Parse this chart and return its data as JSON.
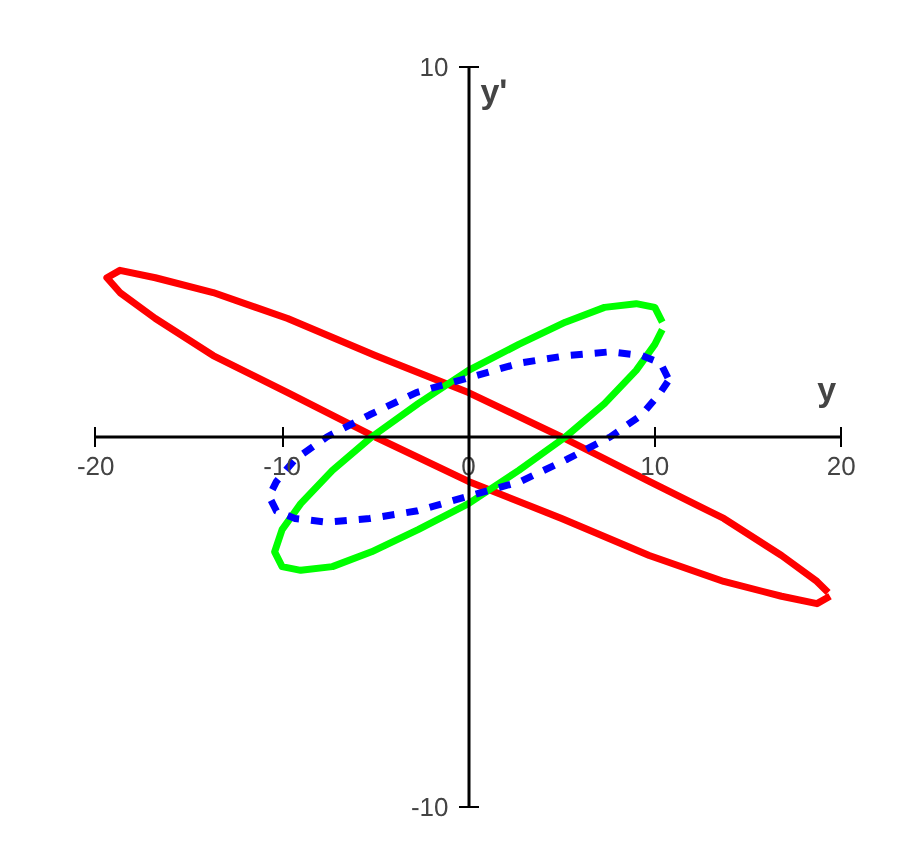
{
  "chart_data": {
    "type": "line",
    "xlabel": "y",
    "ylabel": "y'",
    "xlim": [
      -20,
      20
    ],
    "ylim": [
      -10,
      10
    ],
    "xticks": [
      -20,
      -10,
      0,
      10,
      20
    ],
    "yticks": [
      -10,
      10
    ],
    "grid": false,
    "marker": "none",
    "series": [
      {
        "color": "#ff0000",
        "line_style": "solid",
        "x": [
          19.4,
          18.7,
          16.8,
          13.7,
          9.7,
          5.0,
          0,
          -5.0,
          -9.7,
          -13.7,
          -16.8,
          -18.7,
          -19.4,
          -18.7,
          -16.8,
          -13.7,
          -9.7,
          -5.0,
          0,
          5.0,
          9.7,
          13.7,
          16.8,
          18.7,
          19.3
        ],
        "values": [
          -4.3,
          -4.5,
          -4.3,
          -3.9,
          -3.2,
          -2.2,
          -1.2,
          0,
          1.2,
          2.2,
          3.2,
          3.9,
          4.3,
          4.5,
          4.3,
          3.9,
          3.2,
          2.2,
          1.2,
          0,
          -1.2,
          -2.2,
          -3.2,
          -3.9,
          -4.2
        ]
      },
      {
        "color": "#00ff00",
        "line_style": "solid",
        "x": [
          10.4,
          10.0,
          9.0,
          7.3,
          5.2,
          2.7,
          0,
          -2.7,
          -5.2,
          -7.3,
          -9.0,
          -10.0,
          -10.4,
          -10.0,
          -9.0,
          -7.3,
          -5.2,
          -2.7,
          0,
          2.7,
          5.2,
          7.3,
          9.0,
          10.0,
          10.4
        ],
        "values": [
          3.1,
          3.5,
          3.6,
          3.5,
          3.1,
          2.5,
          1.8,
          0.9,
          0,
          -0.9,
          -1.8,
          -2.5,
          -3.1,
          -3.5,
          -3.6,
          -3.5,
          -3.1,
          -2.5,
          -1.8,
          -0.9,
          0,
          0.9,
          1.8,
          2.5,
          2.9
        ]
      },
      {
        "color": "#0000ff",
        "line_style": "dashed",
        "x": [
          10.7,
          10.3,
          9.3,
          7.6,
          5.3,
          2.8,
          0,
          -2.8,
          -5.3,
          -7.6,
          -9.3,
          -10.3,
          -10.7,
          -10.3,
          -9.3,
          -7.6,
          -5.3,
          -2.8,
          0,
          2.8,
          5.3,
          7.6,
          9.3,
          10.3,
          10.7
        ],
        "values": [
          1.6,
          2.0,
          2.2,
          2.3,
          2.2,
          2.0,
          1.6,
          1.2,
          0.6,
          0,
          -0.6,
          -1.2,
          -1.6,
          -2.0,
          -2.2,
          -2.3,
          -2.2,
          -2.0,
          -1.6,
          -1.2,
          -0.6,
          0,
          0.6,
          1.2,
          1.5
        ]
      }
    ]
  }
}
